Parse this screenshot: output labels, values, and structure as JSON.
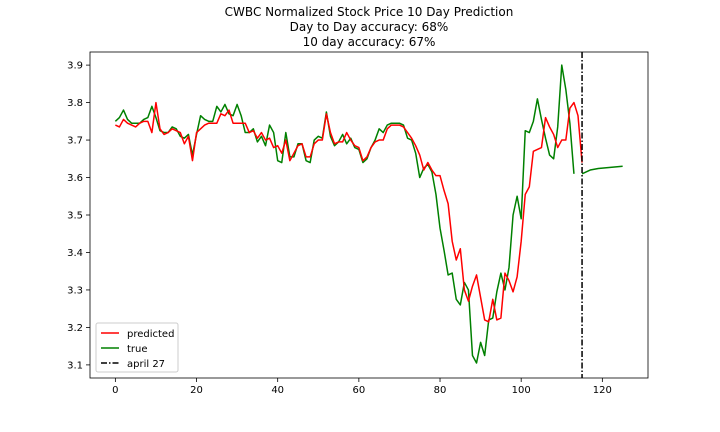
{
  "chart_data": {
    "type": "line",
    "title_lines": [
      "CWBC Normalized Stock Price 10 Day Prediction",
      "Day to Day accuracy: 68%",
      "10 day accuracy: 67%"
    ],
    "xlabel": "",
    "ylabel": "",
    "xlim": [
      -6.25,
      131.25
    ],
    "ylim": [
      3.065,
      3.935
    ],
    "x_ticks": [
      0,
      20,
      40,
      60,
      80,
      100,
      120
    ],
    "y_ticks": [
      3.1,
      3.2,
      3.3,
      3.4,
      3.5,
      3.6,
      3.7,
      3.8,
      3.9
    ],
    "grid": false,
    "legend_position": "lower-left",
    "vline": {
      "x": 115,
      "label": "april 27",
      "color": "#000000",
      "style": "dashdot"
    },
    "series": [
      {
        "name": "predicted",
        "color": "#ff0000",
        "x_start": 0,
        "values": [
          3.74,
          3.735,
          3.755,
          3.745,
          3.74,
          3.735,
          3.745,
          3.75,
          3.75,
          3.72,
          3.8,
          3.73,
          3.715,
          3.72,
          3.73,
          3.725,
          3.72,
          3.69,
          3.71,
          3.645,
          3.72,
          3.73,
          3.74,
          3.745,
          3.745,
          3.745,
          3.77,
          3.765,
          3.78,
          3.745,
          3.745,
          3.745,
          3.745,
          3.72,
          3.725,
          3.705,
          3.72,
          3.7,
          3.705,
          3.68,
          3.685,
          3.665,
          3.7,
          3.645,
          3.665,
          3.685,
          3.69,
          3.655,
          3.655,
          3.69,
          3.7,
          3.7,
          3.77,
          3.72,
          3.69,
          3.695,
          3.695,
          3.72,
          3.7,
          3.685,
          3.68,
          3.645,
          3.655,
          3.68,
          3.695,
          3.7,
          3.7,
          3.73,
          3.74,
          3.74,
          3.74,
          3.735,
          3.72,
          3.705,
          3.685,
          3.66,
          3.62,
          3.64,
          3.62,
          3.605,
          3.605,
          3.565,
          3.53,
          3.43,
          3.38,
          3.41,
          3.3,
          3.27,
          3.31,
          3.34,
          3.28,
          3.22,
          3.215,
          3.275,
          3.22,
          3.225,
          3.345,
          3.325,
          3.295,
          3.335,
          3.43,
          3.555,
          3.575,
          3.67,
          3.675,
          3.68,
          3.76,
          3.735,
          3.715,
          3.68,
          3.7,
          3.7,
          3.785,
          3.8,
          3.765,
          3.64
        ]
      },
      {
        "name": "true",
        "color": "#008000",
        "x_start": 0,
        "values": [
          3.75,
          3.76,
          3.78,
          3.755,
          3.745,
          3.745,
          3.745,
          3.755,
          3.76,
          3.79,
          3.76,
          3.725,
          3.72,
          3.72,
          3.735,
          3.73,
          3.71,
          3.705,
          3.715,
          3.66,
          3.715,
          3.765,
          3.755,
          3.75,
          3.75,
          3.79,
          3.775,
          3.795,
          3.77,
          3.765,
          3.795,
          3.765,
          3.72,
          3.72,
          3.73,
          3.695,
          3.71,
          3.685,
          3.74,
          3.72,
          3.645,
          3.64,
          3.72,
          3.655,
          3.655,
          3.69,
          3.69,
          3.645,
          3.64,
          3.7,
          3.71,
          3.705,
          3.775,
          3.71,
          3.685,
          3.695,
          3.715,
          3.69,
          3.705,
          3.68,
          3.675,
          3.64,
          3.65,
          3.68,
          3.7,
          3.73,
          3.72,
          3.74,
          3.745,
          3.745,
          3.745,
          3.74,
          3.705,
          3.7,
          3.665,
          3.6,
          3.625,
          3.635,
          3.615,
          3.555,
          3.465,
          3.405,
          3.34,
          3.345,
          3.275,
          3.26,
          3.32,
          3.3,
          3.125,
          3.105,
          3.16,
          3.125,
          3.22,
          3.225,
          3.295,
          3.345,
          3.3,
          3.36,
          3.5,
          3.55,
          3.49,
          3.725,
          3.72,
          3.75,
          3.81,
          3.755,
          3.705,
          3.66,
          3.65,
          3.735,
          3.9,
          3.835,
          3.745,
          3.61
        ]
      },
      {
        "name": "",
        "color": "#008000",
        "x_start": 115,
        "values": [
          3.61,
          3.615,
          3.62,
          3.622,
          3.624,
          3.625,
          3.626,
          3.627,
          3.628,
          3.629,
          3.63
        ]
      }
    ]
  }
}
